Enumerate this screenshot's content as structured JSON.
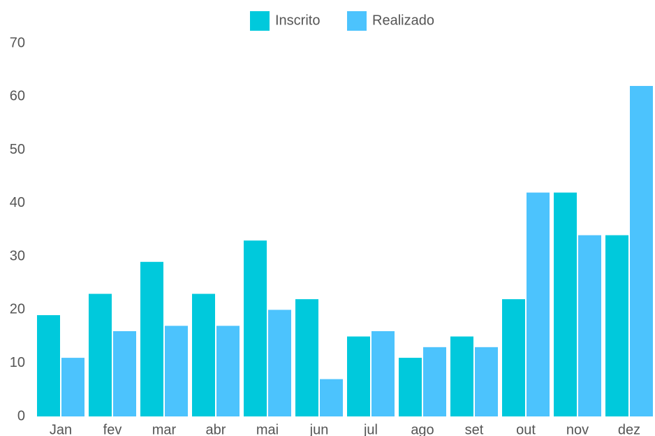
{
  "chart_data": {
    "type": "bar",
    "categories": [
      "Jan",
      "fev",
      "mar",
      "abr",
      "mai",
      "jun",
      "jul",
      "ago",
      "set",
      "out",
      "nov",
      "dez"
    ],
    "series": [
      {
        "name": "Inscrito",
        "color": "#00c9dc",
        "values": [
          19,
          23,
          29,
          23,
          33,
          22,
          15,
          11,
          15,
          22,
          42,
          34
        ]
      },
      {
        "name": "Realizado",
        "color": "#4cc3fd",
        "values": [
          11,
          16,
          17,
          17,
          20,
          7,
          16,
          13,
          13,
          42,
          34,
          62
        ]
      }
    ],
    "ylim": [
      0,
      70
    ],
    "yticks": [
      0,
      10,
      20,
      30,
      40,
      50,
      60,
      70
    ],
    "grid": false,
    "legend": "top"
  }
}
